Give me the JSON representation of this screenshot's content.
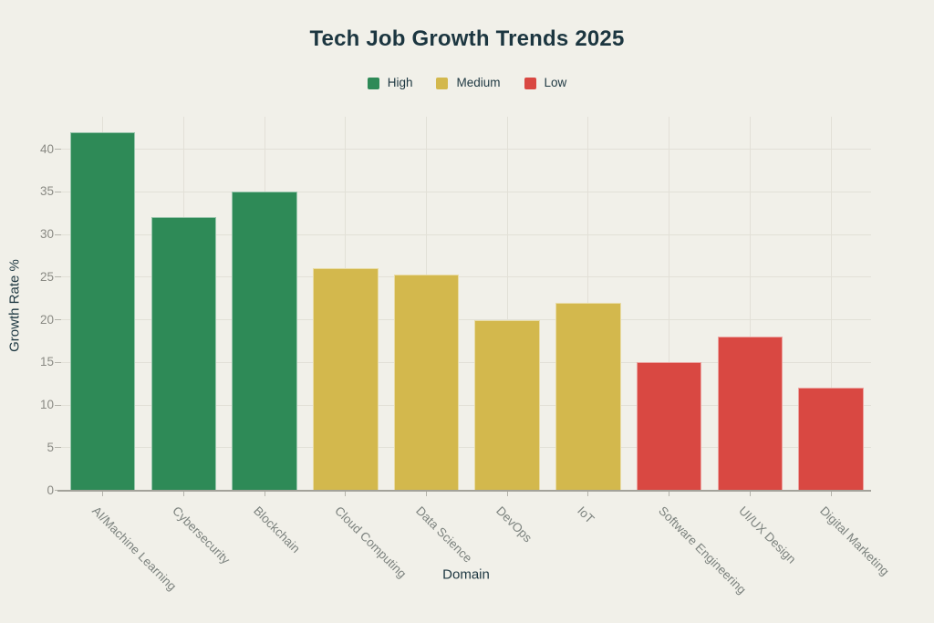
{
  "chart_data": {
    "type": "bar",
    "title": "Tech Job Growth Trends 2025",
    "xlabel": "Domain",
    "ylabel": "Growth Rate %",
    "categories": [
      "AI/Machine Learning",
      "Cybersecurity",
      "Blockchain",
      "Cloud Computing",
      "Data Science",
      "DevOps",
      "IoT",
      "Software Engineering",
      "UI/UX Design",
      "Digital Marketing"
    ],
    "values": [
      42,
      32,
      35,
      26,
      25.3,
      20,
      22,
      15,
      18,
      12
    ],
    "series_group": [
      "High",
      "High",
      "High",
      "Medium",
      "Medium",
      "Medium",
      "Medium",
      "Low",
      "Low",
      "Low"
    ],
    "yticks": [
      0,
      5,
      10,
      15,
      20,
      25,
      30,
      35,
      40
    ],
    "ylim": [
      0,
      43.8
    ],
    "grid": true,
    "legend": {
      "position": "top",
      "entries": [
        {
          "label": "High",
          "color": "#2e8a57"
        },
        {
          "label": "Medium",
          "color": "#d3b84d"
        },
        {
          "label": "Low",
          "color": "#d94842"
        }
      ]
    }
  },
  "style": {
    "background": "#f1f0e9",
    "grid_color": "#e2e0d7",
    "axis_line_color": "#a3a29a",
    "tick_mark_color": "#b4b3ab",
    "tick_label_color": "#8a8a84",
    "category_label_color": "#7d837f",
    "heading_color": "#1c3640"
  }
}
